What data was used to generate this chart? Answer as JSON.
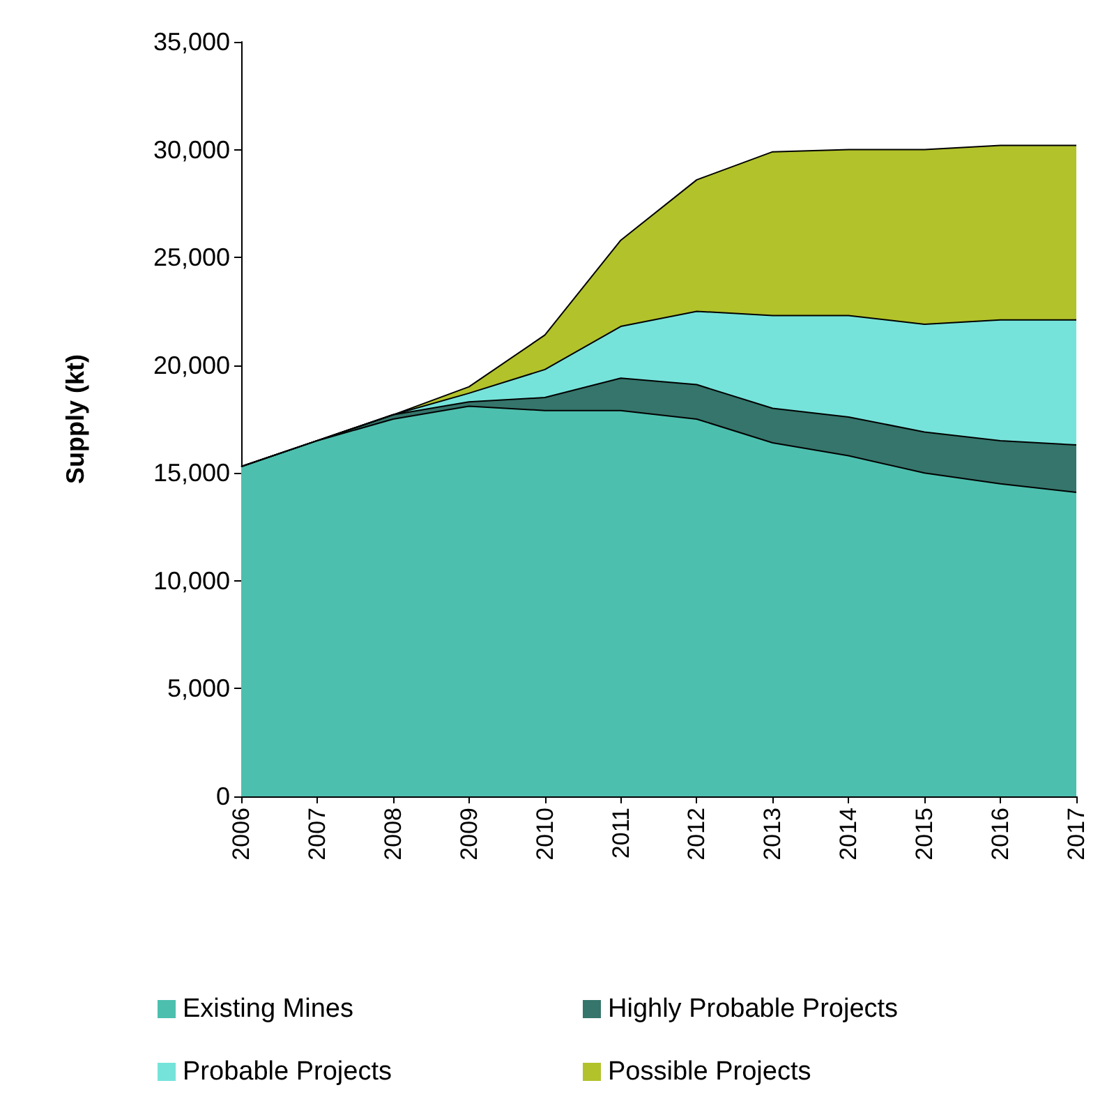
{
  "chart_data": {
    "type": "area",
    "stacked": true,
    "ylabel": "Supply (kt)",
    "categories": [
      "2006",
      "2007",
      "2008",
      "2009",
      "2010",
      "2011",
      "2012",
      "2013",
      "2014",
      "2015",
      "2016",
      "2017"
    ],
    "ylim": [
      0,
      35000
    ],
    "yticks": [
      0,
      {
        "value": 5000,
        "label": "5,000"
      },
      {
        "value": 10000,
        "label": "10,000"
      },
      {
        "value": 15000,
        "label": "15,000"
      },
      {
        "value": 20000,
        "label": "20,000"
      },
      {
        "value": 25000,
        "label": "25,000"
      },
      {
        "value": 30000,
        "label": "30,000"
      },
      {
        "value": 35000,
        "label": "35,000"
      }
    ],
    "grid": false,
    "legend": "bottom",
    "series": [
      {
        "name": "Existing Mines",
        "color": "#4dbfae",
        "values": [
          15300,
          16500,
          17500,
          18100,
          17900,
          17900,
          17500,
          16400,
          15800,
          15000,
          14500,
          14100
        ]
      },
      {
        "name": "Highly Probable Projects",
        "color": "#35756b",
        "values": [
          0,
          0,
          200,
          200,
          600,
          1500,
          1600,
          1600,
          1800,
          1900,
          2000,
          2200
        ]
      },
      {
        "name": "Probable Projects",
        "color": "#76e3da",
        "values": [
          0,
          0,
          0,
          400,
          1300,
          2400,
          3400,
          4300,
          4700,
          5000,
          5600,
          5800
        ]
      },
      {
        "name": "Possible Projects",
        "color": "#b2c22a",
        "values": [
          0,
          0,
          0,
          300,
          1600,
          4000,
          6100,
          7600,
          7700,
          8100,
          8100,
          8100
        ]
      }
    ]
  }
}
